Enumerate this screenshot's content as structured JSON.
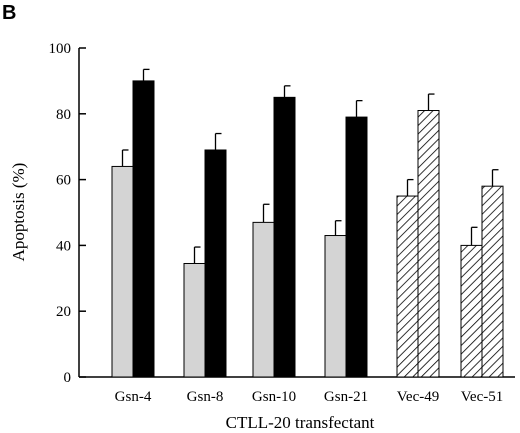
{
  "panel_label": "B",
  "chart_data": {
    "type": "bar",
    "title": "",
    "xlabel": "CTLL-20 transfectant",
    "ylabel": "Apoptosis (%)",
    "ylim": [
      0,
      100
    ],
    "yticks": [
      0,
      20,
      40,
      60,
      80,
      100
    ],
    "categories": [
      "Gsn-4",
      "Gsn-8",
      "Gsn-10",
      "Gsn-21",
      "Vec-49",
      "Vec-51"
    ],
    "series": [
      {
        "values": [
          64,
          34.5,
          47,
          43,
          55,
          40
        ],
        "errors": [
          5,
          5,
          5.5,
          4.5,
          5,
          5.5
        ],
        "colors": [
          "#d4d4d4",
          "#d4d4d4",
          "#d4d4d4",
          "#d4d4d4",
          "hatch",
          "hatch"
        ]
      },
      {
        "values": [
          90,
          69,
          85,
          79,
          81,
          58
        ],
        "errors": [
          3.5,
          5,
          3.5,
          5,
          5,
          5
        ],
        "colors": [
          "#000000",
          "#000000",
          "#000000",
          "#000000",
          "hatch",
          "hatch"
        ]
      }
    ],
    "grid": false,
    "legend": "none"
  }
}
